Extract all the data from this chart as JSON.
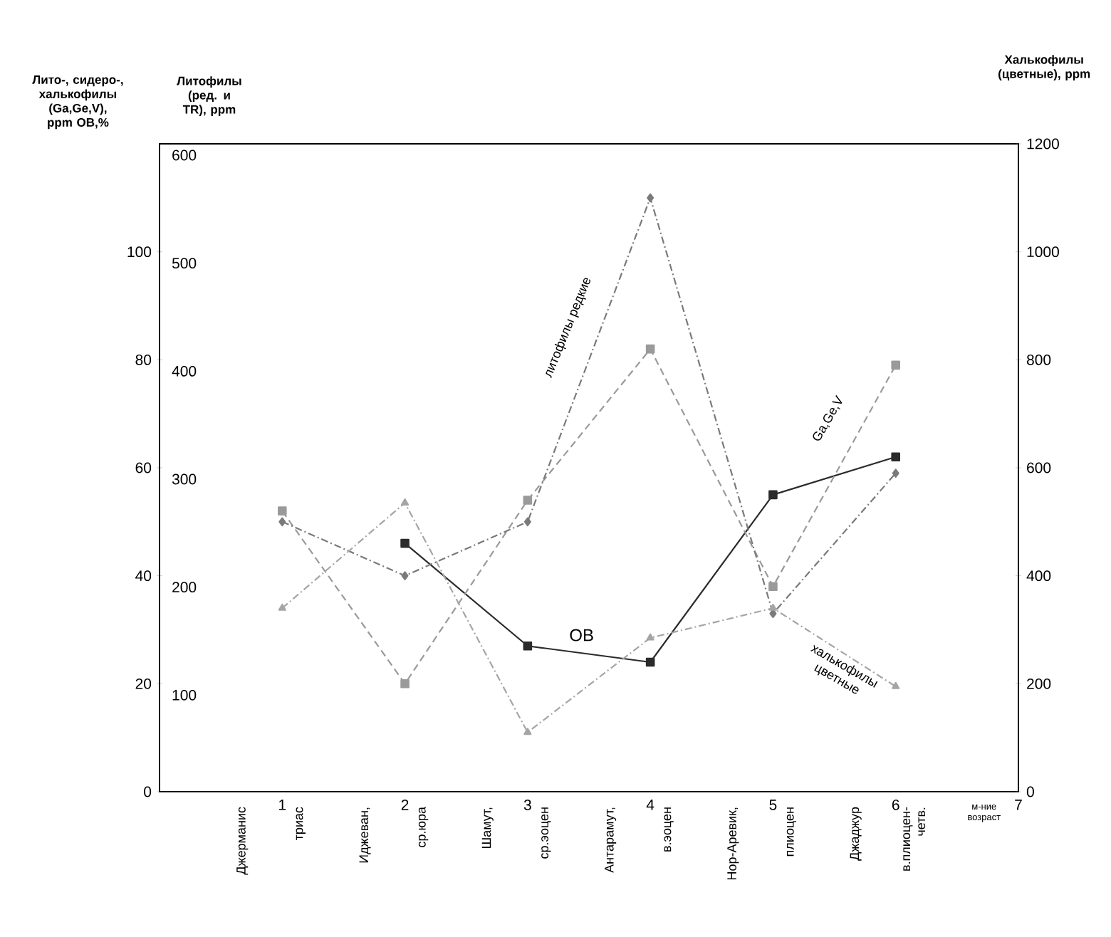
{
  "chart_data": {
    "type": "line",
    "ylabel": "Лито-, сидеро-, халькофилы (Ga,Ge,V), ppm ОВ,%",
    "y2label": "Литофилы (ред. и TR), ppm",
    "y3label": "Халькофилы (цветные), ppm",
    "xlabel": "м-ние возраст",
    "xlim": [
      0,
      7
    ],
    "xticks": [
      1,
      2,
      3,
      4,
      5,
      6,
      7
    ],
    "ylim": [
      0,
      120
    ],
    "yticks": [
      0,
      20,
      40,
      60,
      80,
      100
    ],
    "y2lim": [
      0,
      600
    ],
    "y2ticks": [
      100,
      200,
      300,
      400,
      500,
      600
    ],
    "y3lim": [
      0,
      1200
    ],
    "y3ticks": [
      0,
      200,
      400,
      600,
      800,
      1000,
      1200
    ],
    "x": [
      1,
      2,
      3,
      4,
      5,
      6
    ],
    "series": [
      {
        "name": "ОВ",
        "color": "#2b2b2b",
        "marker": "square",
        "line_style": "solid",
        "axis": "y",
        "values": [
          null,
          46,
          27,
          24,
          55,
          62
        ]
      },
      {
        "name": "Ga,Ge,V",
        "color": "#9a9a9a",
        "marker": "square",
        "line_style": "dashed",
        "axis": "y",
        "values": [
          52,
          20,
          54,
          82,
          38,
          79
        ]
      },
      {
        "name": "литофилы редкие",
        "color": "#7a7a7a",
        "marker": "diamond",
        "line_style": "dashdot",
        "axis": "y2",
        "values": [
          250,
          200,
          250,
          550,
          165,
          295
        ]
      },
      {
        "name": "халькофилы цветные",
        "color": "#a5a5a5",
        "marker": "triangle",
        "line_style": "dashdot",
        "axis": "y3",
        "values": [
          340,
          535,
          110,
          285,
          340,
          195
        ]
      }
    ],
    "annotations": [
      "Джерманис",
      "триас",
      "Иджеван,",
      "ср.юра",
      "Шамут,",
      "ср.эоцен",
      "Антарамут,",
      "в.эоцен",
      "Нор-Аревик,",
      "плиоцен",
      "Джаджур",
      "в.плиоцен-четв."
    ]
  }
}
